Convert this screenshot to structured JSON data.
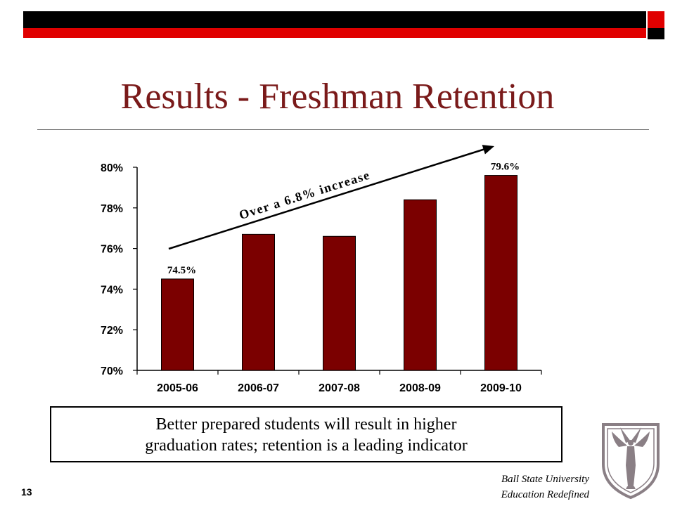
{
  "slide": {
    "title": "Results - Freshman Retention",
    "number": "13",
    "callout_lines": [
      "Better prepared students will result in higher",
      "graduation rates; retention is a leading indicator"
    ],
    "footer_lines": [
      "Ball State University",
      "Education Redefined"
    ],
    "colors": {
      "title": "#7a1a1a",
      "bar": "#7b0000",
      "accent_red": "#e00000",
      "accent_black": "#000000"
    },
    "logo_icon": "ball-state-university-shield-icon"
  },
  "chart_data": {
    "type": "bar",
    "categories": [
      "2005-06",
      "2006-07",
      "2007-08",
      "2008-09",
      "2009-10"
    ],
    "values": [
      74.5,
      76.7,
      76.6,
      78.4,
      79.6
    ],
    "ylim": [
      70,
      80
    ],
    "yticks": [
      70,
      72,
      74,
      76,
      78,
      80
    ],
    "ytick_labels": [
      "70%",
      "72%",
      "74%",
      "76%",
      "78%",
      "80%"
    ],
    "data_labels": [
      {
        "category": "2005-06",
        "text": "74.5%"
      },
      {
        "category": "2009-10",
        "text": "79.6%"
      }
    ],
    "annotation": {
      "text": "Over a 6.8% increase"
    },
    "grid": false,
    "xlabel": "",
    "ylabel": ""
  }
}
